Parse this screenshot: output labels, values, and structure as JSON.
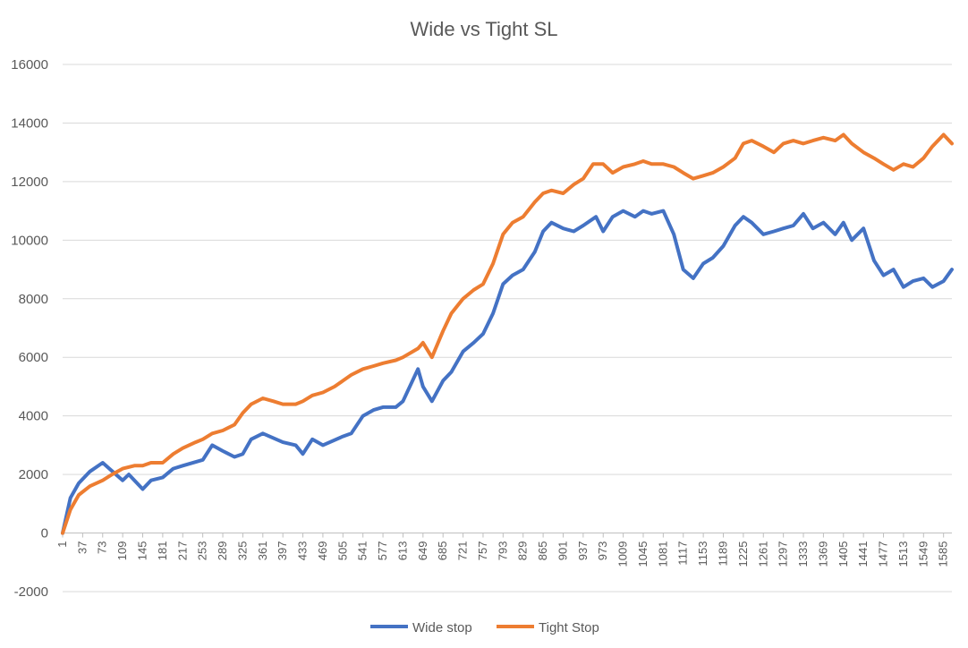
{
  "chart_data": {
    "type": "line",
    "title": "Wide vs Tight SL",
    "xlabel": "",
    "ylabel": "",
    "ylim": [
      -2000,
      16000
    ],
    "y_ticks": [
      -2000,
      0,
      2000,
      4000,
      6000,
      8000,
      10000,
      12000,
      14000,
      16000
    ],
    "x_range": [
      1,
      1600
    ],
    "x_ticks": [
      1,
      37,
      73,
      109,
      145,
      181,
      217,
      253,
      289,
      325,
      361,
      397,
      433,
      469,
      505,
      541,
      577,
      613,
      649,
      685,
      721,
      757,
      793,
      829,
      865,
      901,
      937,
      973,
      1009,
      1045,
      1081,
      1117,
      1153,
      1189,
      1225,
      1261,
      1297,
      1333,
      1369,
      1405,
      1441,
      1477,
      1513,
      1549,
      1585
    ],
    "grid": true,
    "legend_position": "bottom",
    "series": [
      {
        "name": "Wide stop",
        "color": "#4472C4",
        "x": [
          1,
          15,
          30,
          50,
          73,
          85,
          109,
          120,
          145,
          160,
          181,
          200,
          217,
          253,
          270,
          289,
          310,
          325,
          340,
          361,
          397,
          420,
          433,
          450,
          469,
          505,
          520,
          541,
          560,
          577,
          600,
          613,
          640,
          649,
          665,
          685,
          700,
          721,
          740,
          757,
          775,
          793,
          810,
          829,
          850,
          865,
          880,
          901,
          920,
          937,
          960,
          973,
          990,
          1009,
          1030,
          1045,
          1060,
          1081,
          1100,
          1117,
          1135,
          1153,
          1170,
          1189,
          1210,
          1225,
          1240,
          1261,
          1280,
          1297,
          1315,
          1333,
          1350,
          1369,
          1390,
          1405,
          1420,
          1441,
          1460,
          1477,
          1495,
          1513,
          1530,
          1549,
          1565,
          1585,
          1600
        ],
        "values": [
          0,
          1200,
          1700,
          2100,
          2400,
          2200,
          1800,
          2000,
          1500,
          1800,
          1900,
          2200,
          2300,
          2500,
          3000,
          2800,
          2600,
          2700,
          3200,
          3400,
          3100,
          3000,
          2700,
          3200,
          3000,
          3300,
          3400,
          4000,
          4200,
          4300,
          4300,
          4500,
          5600,
          5000,
          4500,
          5200,
          5500,
          6200,
          6500,
          6800,
          7500,
          8500,
          8800,
          9000,
          9600,
          10300,
          10600,
          10400,
          10300,
          10500,
          10800,
          10300,
          10800,
          11000,
          10800,
          11000,
          10900,
          11000,
          10200,
          9000,
          8700,
          9200,
          9400,
          9800,
          10500,
          10800,
          10600,
          10200,
          10300,
          10400,
          10500,
          10900,
          10400,
          10600,
          10200,
          10600,
          10000,
          10400,
          9300,
          8800,
          9000,
          8400,
          8600,
          8700,
          8400,
          8600,
          9000
        ]
      },
      {
        "name": "Tight Stop",
        "color": "#ED7D31",
        "x": [
          1,
          15,
          30,
          50,
          73,
          90,
          109,
          130,
          145,
          160,
          181,
          200,
          217,
          240,
          253,
          270,
          289,
          310,
          325,
          340,
          361,
          380,
          397,
          420,
          433,
          450,
          469,
          490,
          505,
          520,
          541,
          560,
          577,
          600,
          613,
          640,
          649,
          665,
          685,
          700,
          721,
          740,
          757,
          775,
          793,
          810,
          829,
          850,
          865,
          880,
          901,
          920,
          937,
          955,
          973,
          990,
          1009,
          1030,
          1045,
          1060,
          1081,
          1100,
          1117,
          1135,
          1153,
          1170,
          1189,
          1210,
          1225,
          1240,
          1261,
          1280,
          1297,
          1315,
          1333,
          1350,
          1369,
          1390,
          1405,
          1420,
          1441,
          1460,
          1477,
          1495,
          1513,
          1530,
          1549,
          1565,
          1585,
          1600
        ],
        "values": [
          0,
          800,
          1300,
          1600,
          1800,
          2000,
          2200,
          2300,
          2300,
          2400,
          2400,
          2700,
          2900,
          3100,
          3200,
          3400,
          3500,
          3700,
          4100,
          4400,
          4600,
          4500,
          4400,
          4400,
          4500,
          4700,
          4800,
          5000,
          5200,
          5400,
          5600,
          5700,
          5800,
          5900,
          6000,
          6300,
          6500,
          6000,
          6900,
          7500,
          8000,
          8300,
          8500,
          9200,
          10200,
          10600,
          10800,
          11300,
          11600,
          11700,
          11600,
          11900,
          12100,
          12600,
          12600,
          12300,
          12500,
          12600,
          12700,
          12600,
          12600,
          12500,
          12300,
          12100,
          12200,
          12300,
          12500,
          12800,
          13300,
          13400,
          13200,
          13000,
          13300,
          13400,
          13300,
          13400,
          13500,
          13400,
          13600,
          13300,
          13000,
          12800,
          12600,
          12400,
          12600,
          12500,
          12800,
          13200,
          13600,
          13300
        ]
      }
    ]
  }
}
